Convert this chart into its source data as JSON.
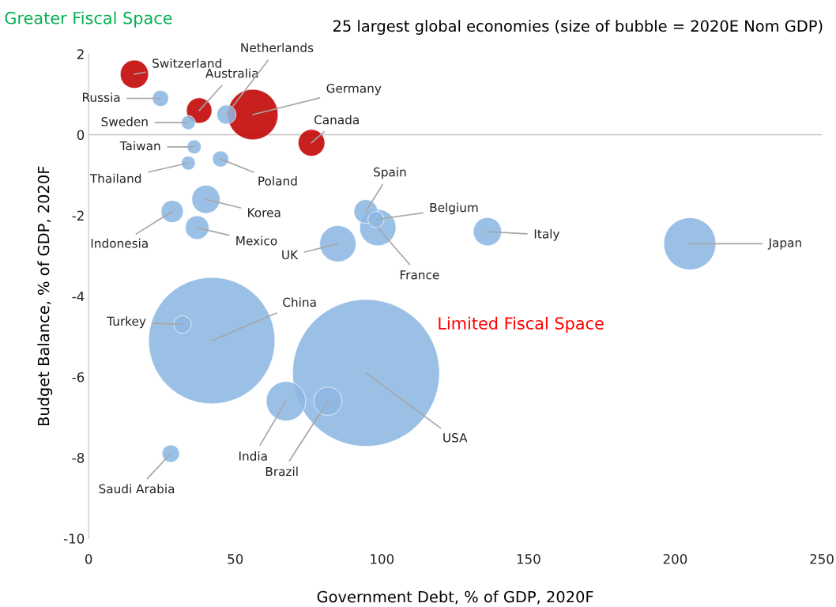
{
  "chart_data": {
    "type": "bubble",
    "title": "25 largest global economies (size of bubble = 2020E Nom GDP)",
    "xlabel": "Government Debt, % of GDP, 2020F",
    "ylabel": "Budget Balance, % of GDP, 2020F",
    "xlim": [
      0,
      250
    ],
    "xticks": [
      0,
      50,
      100,
      150,
      200,
      250
    ],
    "ylim": [
      -10,
      2
    ],
    "yticks": [
      -10,
      -8,
      -6,
      -4,
      -2,
      0,
      2
    ],
    "grid": false,
    "ref_lines": [
      {
        "axis": "y",
        "value": 0,
        "color": "#bfbfbf"
      }
    ],
    "series": [
      {
        "color": "#c00000",
        "x": [
          15.6,
          37.7,
          56,
          76
        ],
        "values": [
          1.5,
          0.6,
          0.5,
          -0.2
        ],
        "sizes": [
          0.037,
          0.03,
          0.118,
          0.033
        ]
      },
      {
        "color": "#8db7e2",
        "x": [
          24.5,
          47,
          34,
          36,
          34,
          45,
          40,
          28.5,
          37,
          94.5,
          98,
          98.6,
          85,
          136,
          205,
          32,
          42,
          94.6,
          67.3,
          81.6,
          28
        ],
        "values": [
          0.9,
          0.5,
          0.3,
          -0.3,
          -0.7,
          -0.6,
          -1.6,
          -1.9,
          -2.3,
          -1.9,
          -2.1,
          -2.3,
          -2.7,
          -2.4,
          -2.7,
          -4.7,
          -5.1,
          -5.9,
          -6.6,
          -6.6,
          -7.9
        ],
        "sizes": [
          0.012,
          0.017,
          0.009,
          0.009,
          0.009,
          0.012,
          0.037,
          0.023,
          0.026,
          0.026,
          0.012,
          0.061,
          0.061,
          0.037,
          0.126,
          0.014,
          0.74,
          1,
          0.072,
          0.037,
          0.014
        ]
      }
    ],
    "annotations": [
      "Greater Fiscal Space",
      "Limited Fiscal Space",
      {
        "text": "Switzerland",
        "x": 15.6,
        "y": 1.5
      },
      {
        "text": "Russia",
        "x": 24.5,
        "y": 0.9
      },
      {
        "text": "Australia",
        "x": 37.7,
        "y": 0.6
      },
      {
        "text": "Netherlands",
        "x": 47,
        "y": 0.5
      },
      {
        "text": "Germany",
        "x": 56,
        "y": 0.5
      },
      {
        "text": "Sweden",
        "x": 34,
        "y": 0.3
      },
      {
        "text": "Canada",
        "x": 76,
        "y": -0.2
      },
      {
        "text": "Taiwan",
        "x": 36,
        "y": -0.3
      },
      {
        "text": "Thailand",
        "x": 34,
        "y": -0.7
      },
      {
        "text": "Poland",
        "x": 45,
        "y": -0.6
      },
      {
        "text": "Korea",
        "x": 40,
        "y": -1.6
      },
      {
        "text": "Indonesia",
        "x": 28.5,
        "y": -1.9
      },
      {
        "text": "Mexico",
        "x": 37,
        "y": -2.3
      },
      {
        "text": "Spain",
        "x": 94.5,
        "y": -1.9
      },
      {
        "text": "Belgium",
        "x": 98,
        "y": -2.1
      },
      {
        "text": "France",
        "x": 98.6,
        "y": -2.3
      },
      {
        "text": "UK",
        "x": 85,
        "y": -2.7
      },
      {
        "text": "Italy",
        "x": 136,
        "y": -2.4
      },
      {
        "text": "Japan",
        "x": 205,
        "y": -2.7
      },
      {
        "text": "Turkey",
        "x": 32,
        "y": -4.7
      },
      {
        "text": "China",
        "x": 42,
        "y": -5.1
      },
      {
        "text": "USA",
        "x": 94.6,
        "y": -5.9
      },
      {
        "text": "India",
        "x": 67.3,
        "y": -6.6
      },
      {
        "text": "Brazil",
        "x": 81.6,
        "y": -6.6
      },
      {
        "text": "Saudi Arabia",
        "x": 28,
        "y": -7.9
      }
    ]
  }
}
